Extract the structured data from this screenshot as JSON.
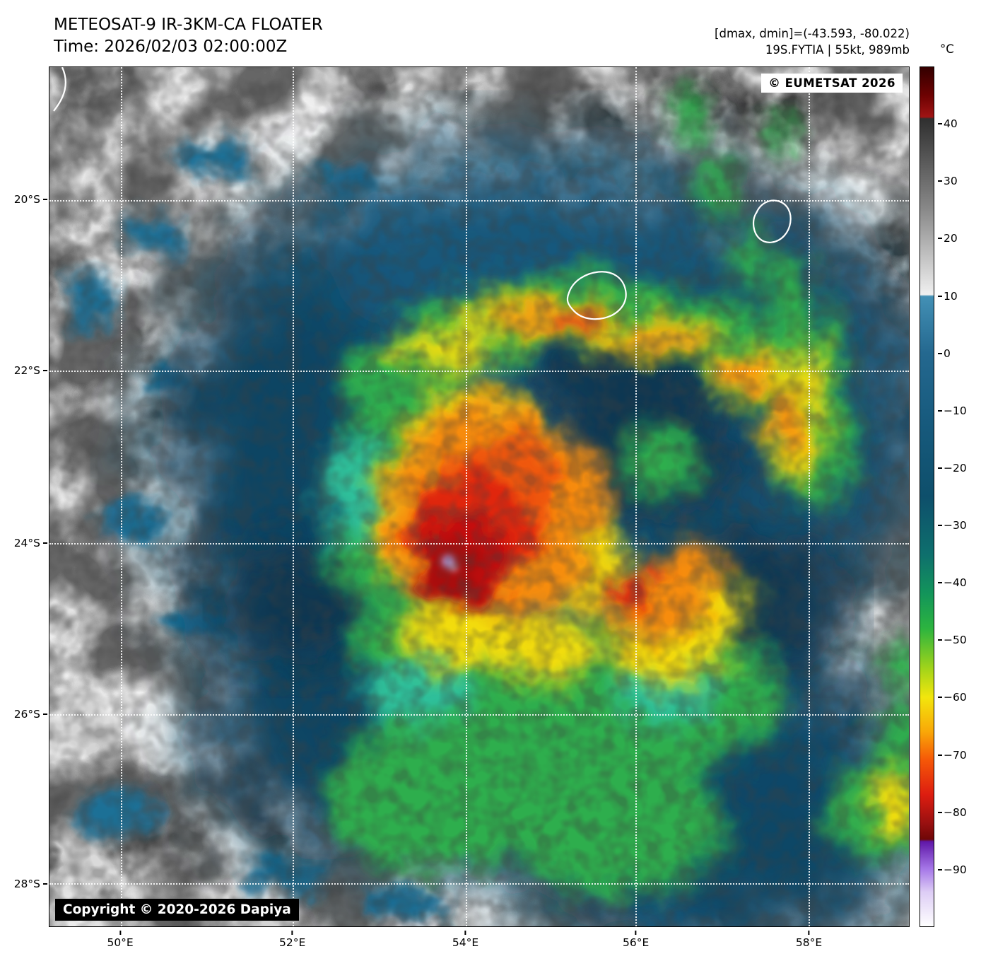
{
  "header": {
    "title": "METEOSAT-9 IR-3KM-CA FLOATER",
    "time": "Time: 2026/02/03 02:00:00Z",
    "dmax_dmin": "[dmax, dmin]=(-43.593, -80.022)",
    "storm_info": "19S.FYTIA | 55kt, 989mb"
  },
  "map": {
    "eumetsat": "© EUMETSAT 2026",
    "copyright": "Copyright © 2020-2026 Dapiya"
  },
  "axes": {
    "lat_ticks": [
      {
        "label": "20°S",
        "pos": 15.45
      },
      {
        "label": "22°S",
        "pos": 35.3
      },
      {
        "label": "24°S",
        "pos": 55.4
      },
      {
        "label": "26°S",
        "pos": 75.3
      },
      {
        "label": "28°S",
        "pos": 95.0
      }
    ],
    "lon_ticks": [
      {
        "label": "50°E",
        "pos": 8.3
      },
      {
        "label": "52°E",
        "pos": 28.3
      },
      {
        "label": "54°E",
        "pos": 48.4
      },
      {
        "label": "56°E",
        "pos": 68.2
      },
      {
        "label": "58°E",
        "pos": 88.3
      }
    ]
  },
  "colorbar": {
    "unit": "°C",
    "domain_max": 50,
    "domain_min": -100,
    "ticks": [
      {
        "label": "40",
        "value": 40
      },
      {
        "label": "30",
        "value": 30
      },
      {
        "label": "20",
        "value": 20
      },
      {
        "label": "10",
        "value": 10
      },
      {
        "label": "0",
        "value": 0
      },
      {
        "label": "−10",
        "value": -10
      },
      {
        "label": "−20",
        "value": -20
      },
      {
        "label": "−30",
        "value": -30
      },
      {
        "label": "−40",
        "value": -40
      },
      {
        "label": "−50",
        "value": -50
      },
      {
        "label": "−60",
        "value": -60
      },
      {
        "label": "−70",
        "value": -70
      },
      {
        "label": "−80",
        "value": -80
      },
      {
        "label": "−90",
        "value": -90
      }
    ],
    "stops": [
      {
        "t": 50,
        "color": "#330000"
      },
      {
        "t": 45,
        "color": "#6e0202"
      },
      {
        "t": 41.3,
        "color": "#a01414"
      },
      {
        "t": 41,
        "color": "#2f2f2f"
      },
      {
        "t": 25,
        "color": "#8a8a8a"
      },
      {
        "t": 10.3,
        "color": "#f0f0f0"
      },
      {
        "t": 10,
        "color": "#4390b5"
      },
      {
        "t": 0,
        "color": "#24688f"
      },
      {
        "t": -12,
        "color": "#175a7d"
      },
      {
        "t": -25,
        "color": "#0e4f6b"
      },
      {
        "t": -35,
        "color": "#0e6f6d"
      },
      {
        "t": -42,
        "color": "#13955a"
      },
      {
        "t": -48,
        "color": "#2cb43f"
      },
      {
        "t": -55,
        "color": "#a2d41a"
      },
      {
        "t": -60,
        "color": "#f2e60d"
      },
      {
        "t": -66,
        "color": "#f9a808"
      },
      {
        "t": -71,
        "color": "#f55708"
      },
      {
        "t": -77,
        "color": "#dd1d10"
      },
      {
        "t": -82,
        "color": "#991010"
      },
      {
        "t": -84.8,
        "color": "#6f0707"
      },
      {
        "t": -85.2,
        "color": "#5f17a8"
      },
      {
        "t": -90,
        "color": "#a678e8"
      },
      {
        "t": -94,
        "color": "#ddcdf5"
      },
      {
        "t": -100,
        "color": "#ffffff"
      }
    ]
  }
}
